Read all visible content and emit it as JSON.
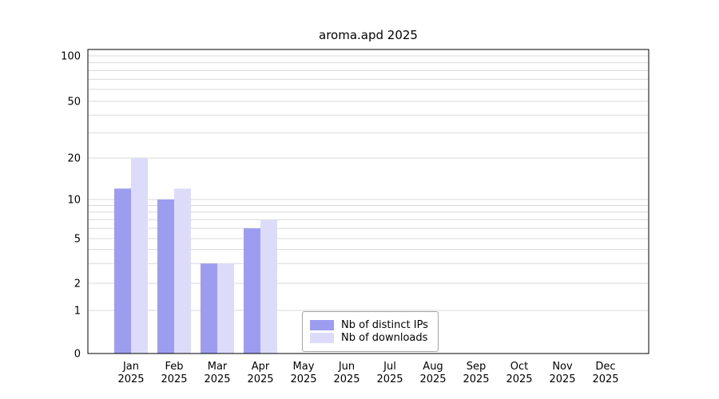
{
  "chart_data": {
    "type": "bar",
    "title": "aroma.apd 2025",
    "categories": [
      "Jan",
      "Feb",
      "Mar",
      "Apr",
      "May",
      "Jun",
      "Jul",
      "Aug",
      "Sep",
      "Oct",
      "Nov",
      "Dec"
    ],
    "year_label": "2025",
    "series": [
      {
        "name": "Nb of distinct IPs",
        "color": "#9d9df0",
        "values": [
          12,
          10,
          3,
          6,
          0,
          0,
          0,
          0,
          0,
          0,
          0,
          0
        ]
      },
      {
        "name": "Nb of downloads",
        "color": "#dcdcfa",
        "values": [
          20,
          12,
          3,
          7,
          0,
          0,
          0,
          0,
          0,
          0,
          0,
          0
        ]
      }
    ],
    "yticks": [
      0,
      1,
      2,
      5,
      10,
      20,
      50,
      100
    ],
    "ylim": [
      0,
      100
    ],
    "yscale": "log-like",
    "grid": "horizontal minor log gridlines",
    "grid_color": "#d9d9d9",
    "axis_color": "#000000",
    "legend_position": "inside-bottom-center"
  }
}
